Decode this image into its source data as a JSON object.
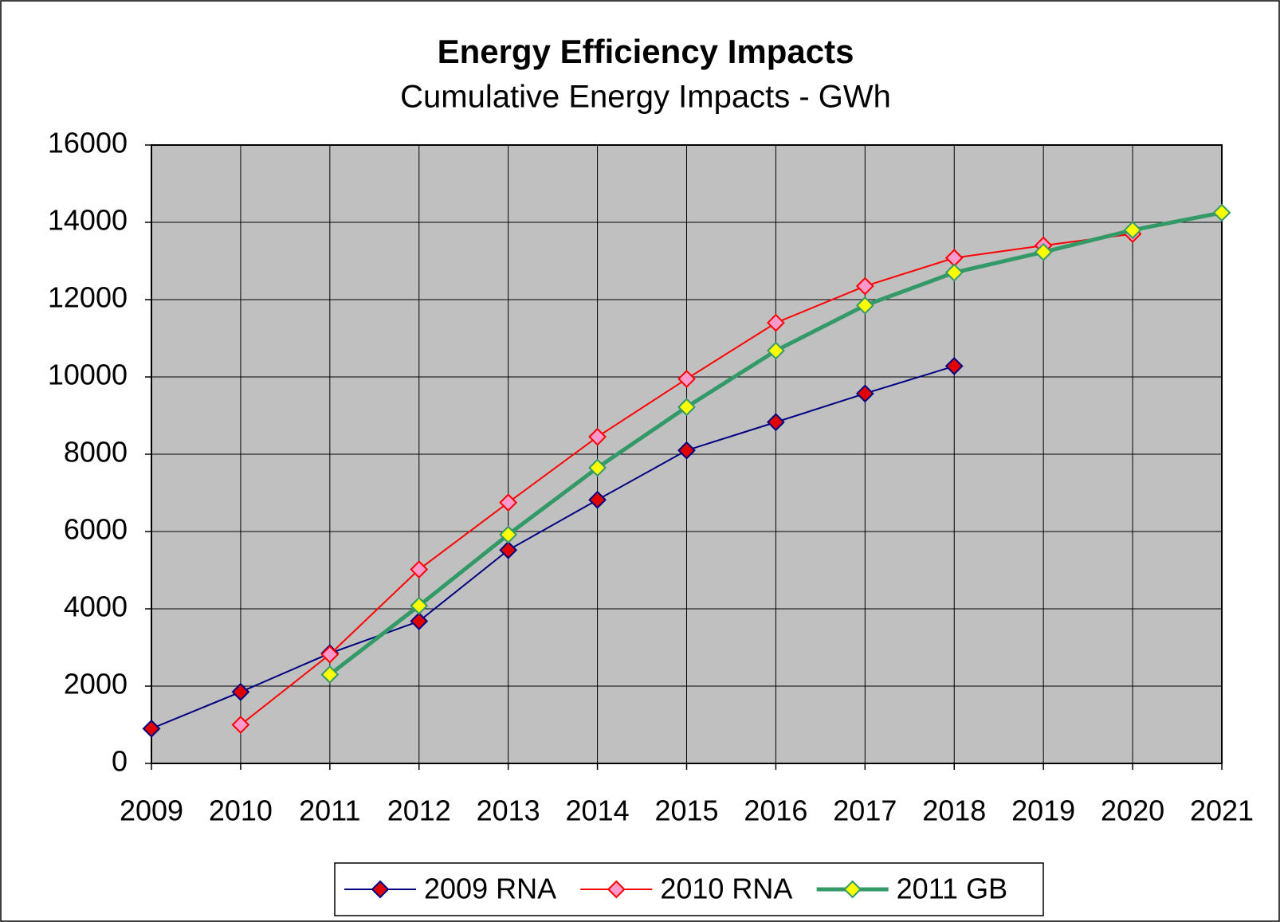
{
  "chart_data": {
    "type": "line",
    "title": "Energy Efficiency Impacts",
    "subtitle": "Cumulative Energy Impacts - GWh",
    "categories": [
      "2009",
      "2010",
      "2011",
      "2012",
      "2013",
      "2014",
      "2015",
      "2016",
      "2017",
      "2018",
      "2019",
      "2020",
      "2021"
    ],
    "series": [
      {
        "name": "2009 RNA",
        "color": "#000080",
        "marker_color": "#e00000",
        "line_width": 2,
        "values": [
          900,
          1850,
          2850,
          3680,
          5520,
          6820,
          8100,
          8830,
          9570,
          10280,
          null,
          null,
          null
        ]
      },
      {
        "name": "2010 RNA",
        "color": "#ff0000",
        "marker_color": "#ff99cc",
        "line_width": 2,
        "values": [
          null,
          1000,
          2820,
          5020,
          6750,
          8450,
          9950,
          11400,
          12350,
          13080,
          13400,
          13700,
          null
        ]
      },
      {
        "name": "2011 GB",
        "color": "#339966",
        "marker_color": "#ffff00",
        "line_width": 5,
        "values": [
          null,
          null,
          2300,
          4080,
          5920,
          7650,
          9220,
          10680,
          11850,
          12700,
          13230,
          13800,
          14250
        ]
      }
    ],
    "ylim": [
      0,
      16000
    ],
    "yticks": [
      0,
      2000,
      4000,
      6000,
      8000,
      10000,
      12000,
      14000,
      16000
    ],
    "grid": true,
    "plot_background": "#c0c0c0",
    "legend": "bottom"
  }
}
